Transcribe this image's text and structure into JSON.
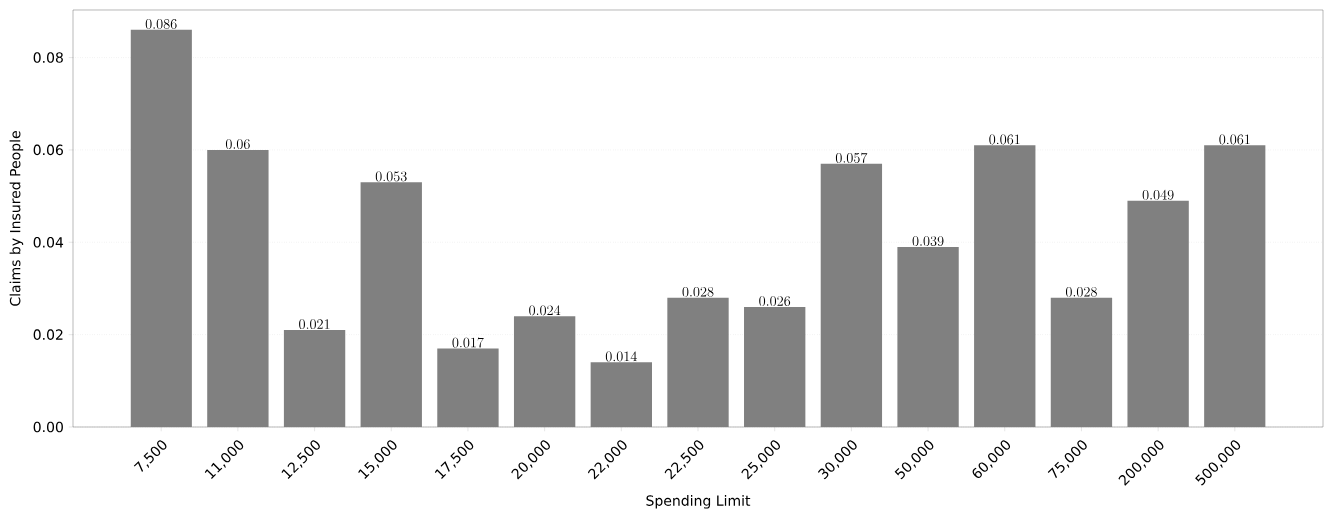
{
  "chart_data": {
    "type": "bar",
    "xlabel": "Spending Limit",
    "ylabel": "Claims by Insured People",
    "categories": [
      "7,500",
      "11,000",
      "12,500",
      "15,000",
      "17,500",
      "20,000",
      "22,000",
      "22,500",
      "25,000",
      "30,000",
      "50,000",
      "60,000",
      "75,000",
      "200,000",
      "500,000"
    ],
    "values": [
      0.086,
      0.06,
      0.021,
      0.053,
      0.017,
      0.024,
      0.014,
      0.028,
      0.026,
      0.057,
      0.039,
      0.061,
      0.028,
      0.049,
      0.061
    ],
    "color": "#808080",
    "data_labels": true,
    "grid": "y",
    "ylim": [
      0,
      0.0903
    ],
    "yticks": [
      {
        "value": 0,
        "label": "0.00"
      },
      {
        "value": 0.02,
        "label": "0.02"
      },
      {
        "value": 0.04,
        "label": "0.04"
      },
      {
        "value": 0.06,
        "label": "0.06"
      },
      {
        "value": 0.08,
        "label": "0.08"
      }
    ]
  }
}
